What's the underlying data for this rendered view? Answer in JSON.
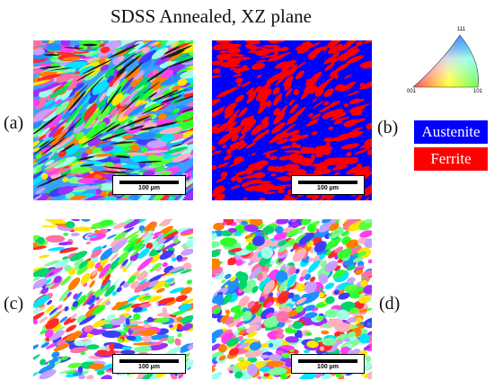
{
  "title": "SDSS Annealed, XZ plane",
  "panel_labels": {
    "a": "(a)",
    "b": "(b)",
    "c": "(c)",
    "d": "(d)"
  },
  "scale_bar_label": "100 µm",
  "ipf_key": {
    "top": "111",
    "left": "001",
    "right": "101"
  },
  "phase_legend": [
    {
      "name": "Austenite",
      "color": "#0000ff"
    },
    {
      "name": "Ferrite",
      "color": "#ff0000"
    }
  ],
  "colors": {
    "austenite": "#0000ff",
    "ferrite": "#ff0000"
  }
}
